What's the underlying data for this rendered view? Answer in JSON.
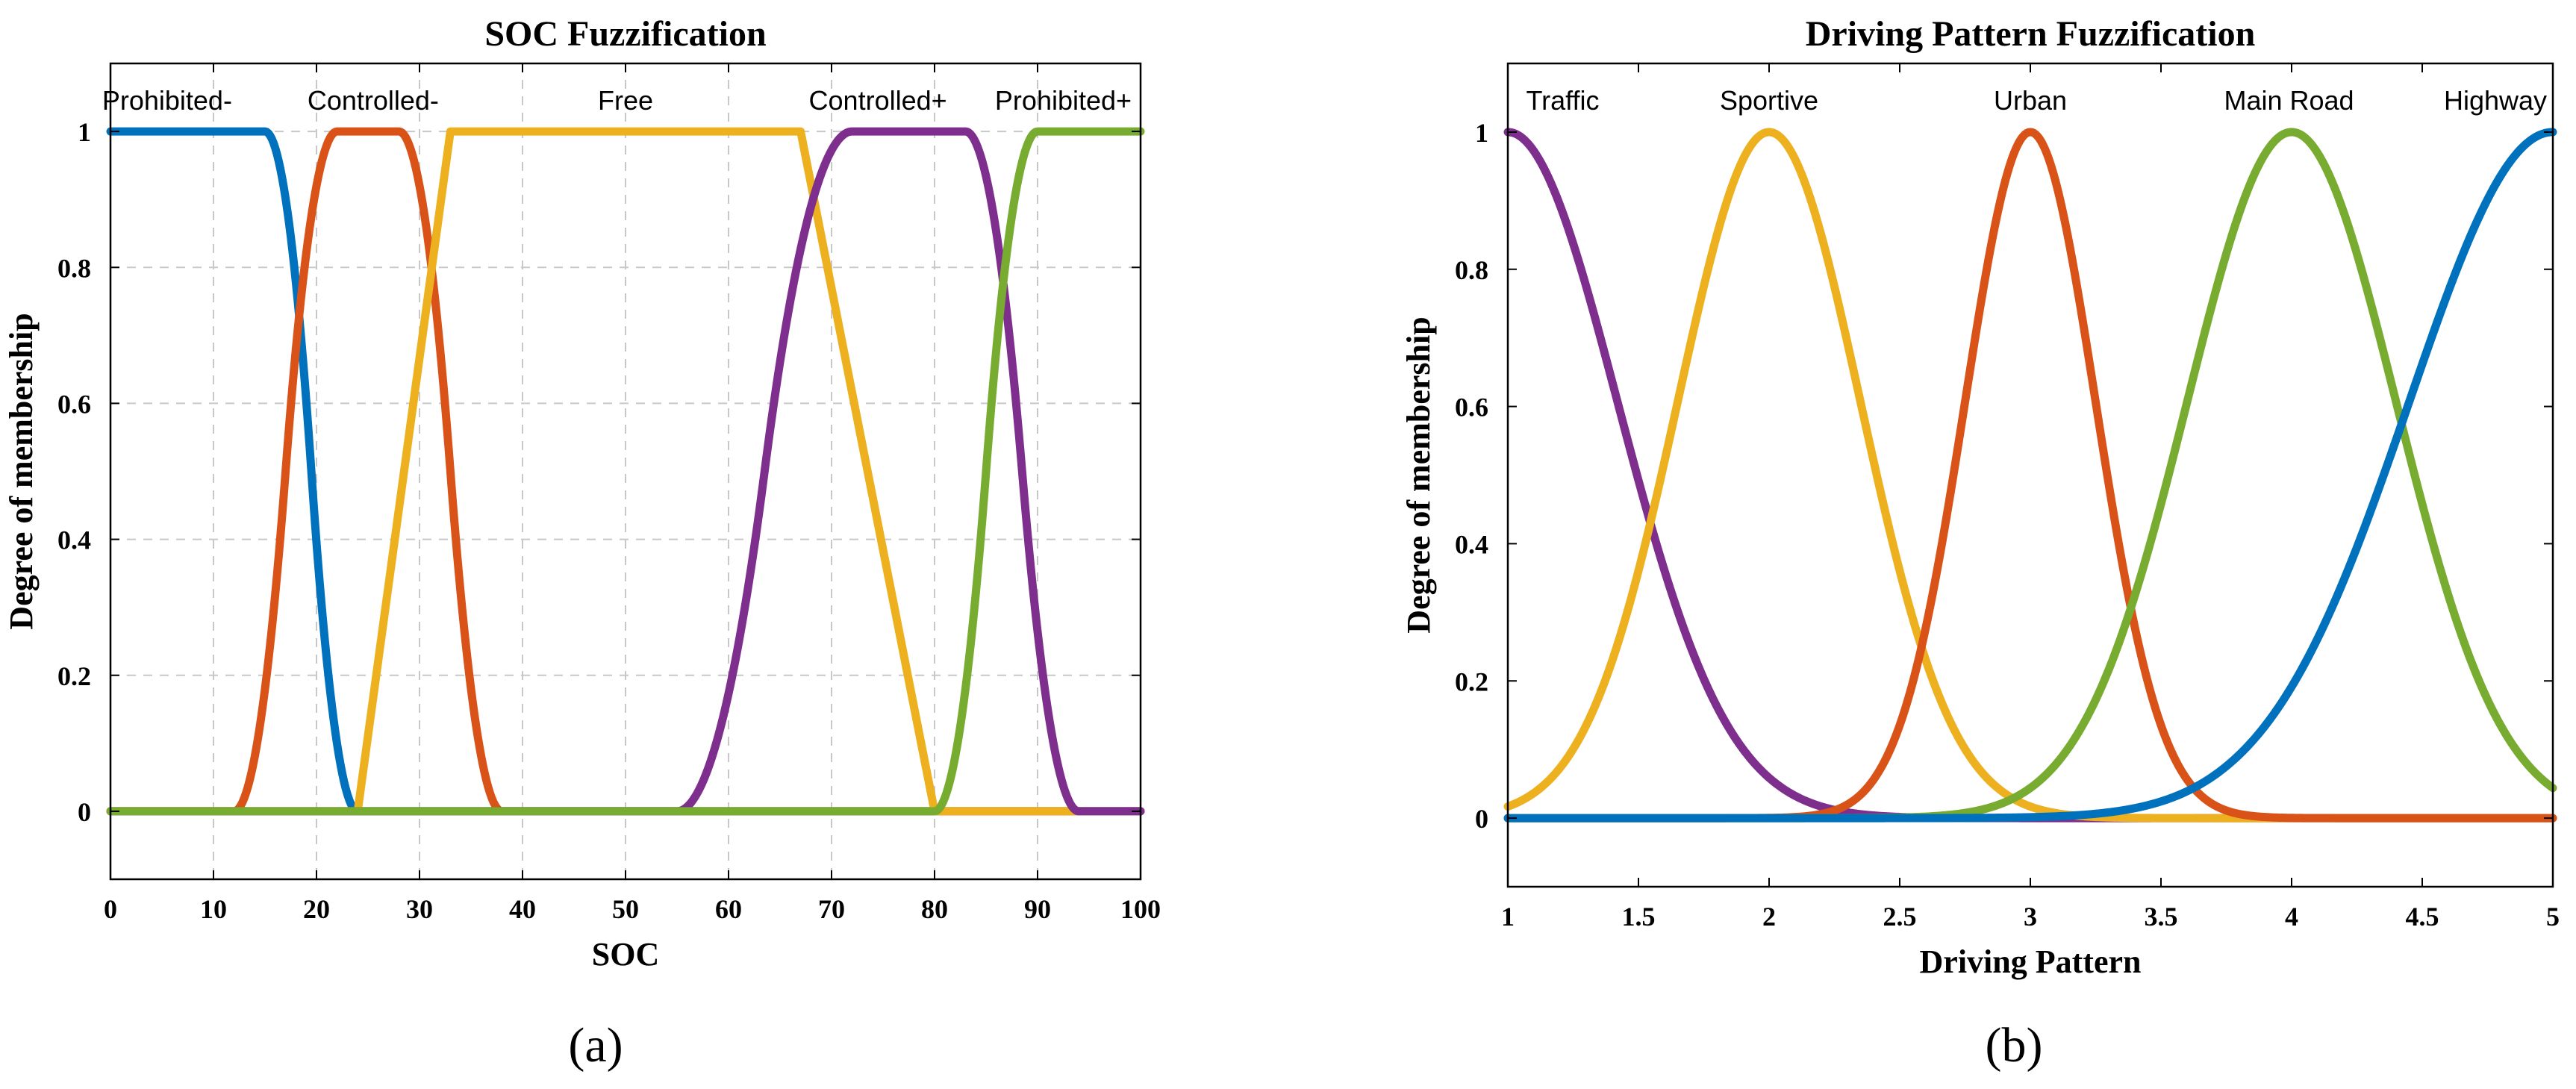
{
  "figure": {
    "caption_a": "(a)",
    "caption_b": "(b)"
  },
  "chart_data": [
    {
      "type": "line",
      "title": "SOC Fuzzification",
      "xlabel": "SOC",
      "ylabel": "Degree of membership",
      "xlim": [
        0,
        100
      ],
      "ylim": [
        -0.1,
        1.1
      ],
      "grid": true,
      "xticks": [
        0,
        10,
        20,
        30,
        40,
        50,
        60,
        70,
        80,
        90,
        100
      ],
      "yticks": [
        0,
        0.2,
        0.4,
        0.6,
        0.8,
        1
      ],
      "series": [
        {
          "name": "Prohibited-",
          "color": "#0072BD",
          "shape": "zmf",
          "params": [
            15,
            24
          ],
          "label_x": 5.5
        },
        {
          "name": "Controlled-",
          "color": "#D95319",
          "shape": "pimf",
          "params": [
            12,
            22,
            28,
            38
          ],
          "label_x": 25.5
        },
        {
          "name": "Free",
          "color": "#EDB120",
          "shape": "trapmf",
          "params": [
            24,
            33,
            67,
            80
          ],
          "label_x": 50
        },
        {
          "name": "Controlled+",
          "color": "#7E2F8E",
          "shape": "pimf",
          "params": [
            55,
            72,
            83,
            94
          ],
          "label_x": 74.5
        },
        {
          "name": "Prohibited+",
          "color": "#77AC30",
          "shape": "smf",
          "params": [
            80,
            90
          ],
          "label_x": 92.5
        }
      ]
    },
    {
      "type": "line",
      "title": "Driving Pattern Fuzzification",
      "xlabel": "Driving Pattern",
      "ylabel": "Degree of membership",
      "xlim": [
        1,
        5
      ],
      "ylim": [
        -0.1,
        1.1
      ],
      "grid": false,
      "xticks": [
        1,
        1.5,
        2,
        2.5,
        3,
        3.5,
        4,
        4.5,
        5
      ],
      "yticks": [
        0,
        0.2,
        0.4,
        0.6,
        0.8,
        1
      ],
      "series": [
        {
          "name": "Traffic",
          "color": "#7E2F8E",
          "shape": "gaussmf",
          "params": [
            1,
            0.42
          ],
          "label_x": 1.21
        },
        {
          "name": "Sportive",
          "color": "#EDB120",
          "shape": "gaussmf",
          "params": [
            2,
            0.35
          ],
          "label_x": 2.0
        },
        {
          "name": "Urban",
          "color": "#D95319",
          "shape": "gaussmf",
          "params": [
            3,
            0.25
          ],
          "label_x": 3.0
        },
        {
          "name": "Main Road",
          "color": "#77AC30",
          "shape": "gaussmf",
          "params": [
            4,
            0.4
          ],
          "label_x": 3.99
        },
        {
          "name": "Highway",
          "color": "#0072BD",
          "shape": "gaussmf",
          "params": [
            5,
            0.55
          ],
          "label_x": 4.78
        }
      ]
    }
  ]
}
